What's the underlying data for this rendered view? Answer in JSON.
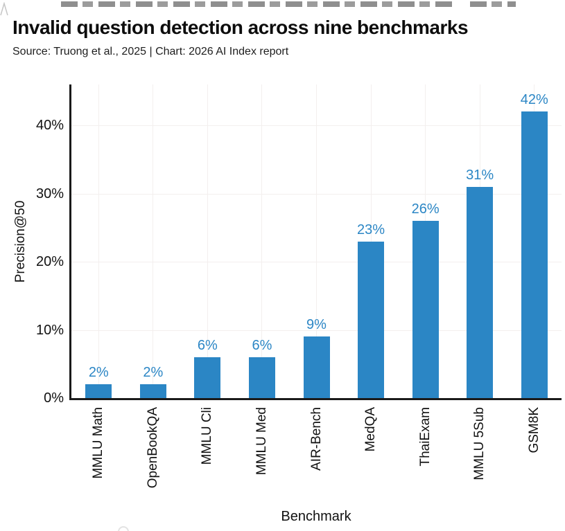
{
  "header": {
    "title": "Invalid question detection across nine benchmarks",
    "subtitle": "Source: Truong et al., 2025 | Chart: 2026 AI Index report"
  },
  "chart_data": {
    "type": "bar",
    "title": "Invalid question detection across nine benchmarks",
    "categories": [
      "MMLU Math",
      "OpenBookQA",
      "MMLU Cli",
      "MMLU Med",
      "AIR-Bench",
      "MedQA",
      "ThaiExam",
      "MMLU 5Sub",
      "GSM8K"
    ],
    "values": [
      2,
      2,
      6,
      6,
      9,
      23,
      26,
      31,
      42
    ],
    "value_labels": [
      "2%",
      "2%",
      "6%",
      "6%",
      "9%",
      "23%",
      "26%",
      "31%",
      "42%"
    ],
    "xlabel": "Benchmark",
    "ylabel": "Precision@50",
    "yticks": [
      0,
      10,
      20,
      30,
      40
    ],
    "ytick_labels": [
      "0%",
      "10%",
      "20%",
      "30%",
      "40%"
    ],
    "ylim": [
      0,
      46
    ],
    "grid": true,
    "legend": "none",
    "bar_color": "#2b86c5",
    "value_label_color": "#2b86c5",
    "axis_color": "#1a1a1a",
    "gridline_color": "#f3efee"
  }
}
